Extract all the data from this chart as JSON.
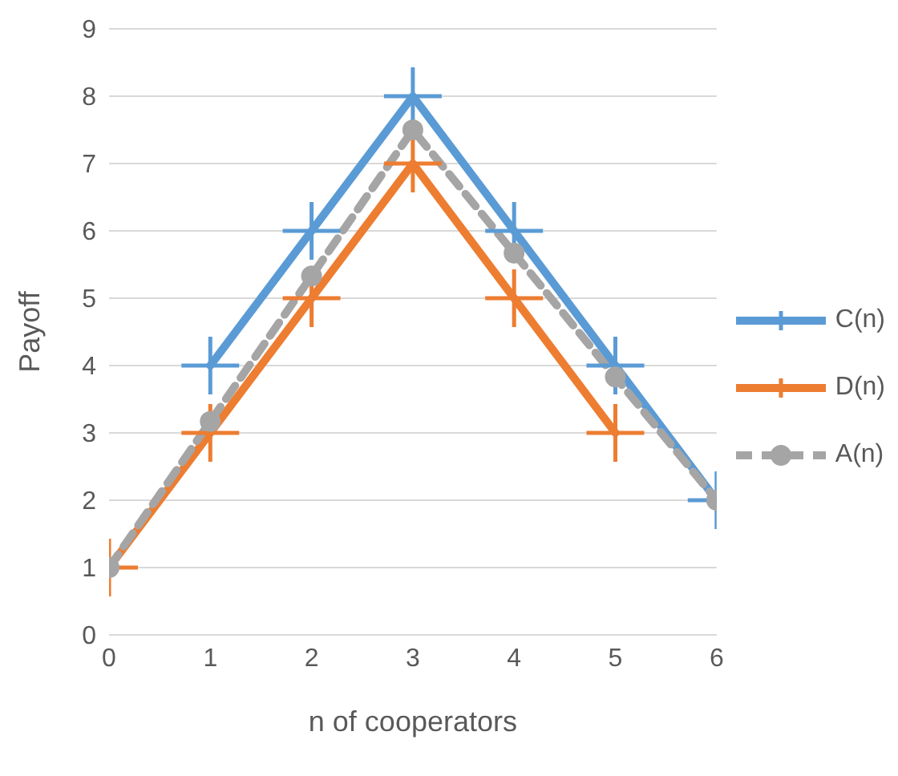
{
  "chart_data": {
    "type": "line",
    "xlabel": "n of cooperators",
    "ylabel": "Payoff",
    "xlim": [
      0,
      6
    ],
    "xticks": [
      0,
      1,
      2,
      3,
      4,
      5,
      6
    ],
    "ylim": [
      0,
      9
    ],
    "yticks": [
      0,
      1,
      2,
      3,
      4,
      5,
      6,
      7,
      8,
      9
    ],
    "grid": "y",
    "legend": "right",
    "series": [
      {
        "name": "C(n)",
        "color": "#5b9bd5",
        "x": [
          1,
          2,
          3,
          4,
          5,
          6
        ],
        "values": [
          4,
          6,
          8,
          6,
          4,
          2
        ],
        "marker": "cross",
        "line_style": "solid"
      },
      {
        "name": "D(n)",
        "color": "#ed7d31",
        "x": [
          0,
          1,
          2,
          3,
          4,
          5
        ],
        "values": [
          1,
          3,
          5,
          7,
          5,
          3
        ],
        "marker": "cross",
        "line_style": "solid"
      },
      {
        "name": "A(n)",
        "color": "#a5a5a5",
        "x": [
          0,
          1,
          2,
          3,
          4,
          5,
          6
        ],
        "values": [
          1,
          3.17,
          5.33,
          7.5,
          5.67,
          3.83,
          2
        ],
        "marker": "circle",
        "line_style": "dashed"
      }
    ]
  }
}
